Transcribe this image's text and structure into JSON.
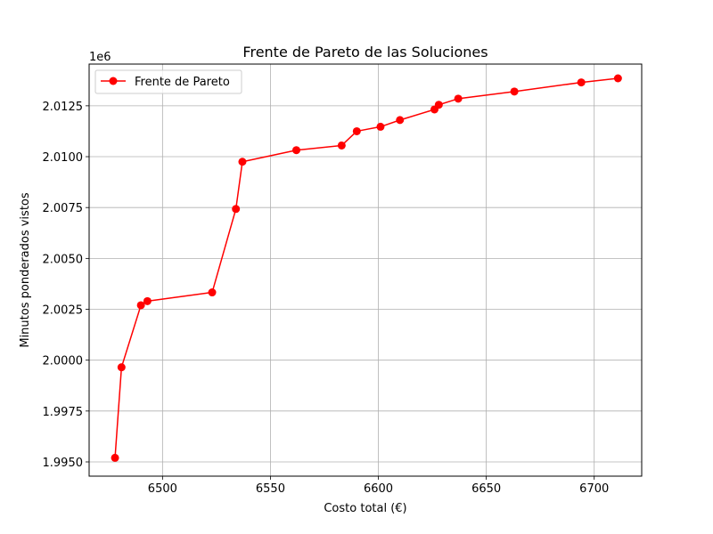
{
  "chart_data": {
    "type": "line",
    "title": "Frente de Pareto de las Soluciones",
    "xlabel": "Costo total (€)",
    "ylabel": "Minutos ponderados vistos",
    "y_offset_label": "1e6",
    "xlim": [
      6466,
      6722
    ],
    "ylim": [
      1.9943,
      2.01455
    ],
    "x_ticks": [
      6500,
      6550,
      6600,
      6650,
      6700
    ],
    "x_tick_labels": [
      "6500",
      "6550",
      "6600",
      "6650",
      "6700"
    ],
    "y_ticks": [
      1.995,
      1.9975,
      2.0,
      2.0025,
      2.005,
      2.0075,
      2.01,
      2.0125
    ],
    "y_tick_labels": [
      "1.9950",
      "1.9975",
      "2.0000",
      "2.0025",
      "2.0050",
      "2.0075",
      "2.0100",
      "2.0125"
    ],
    "grid": true,
    "legend_position": "upper-left",
    "series": [
      {
        "name": "Frente de Pareto",
        "color": "#ff0000",
        "marker": "circle",
        "x": [
          6478,
          6481,
          6490,
          6493,
          6523,
          6534,
          6537,
          6562,
          6583,
          6590,
          6601,
          6610,
          6626,
          6628,
          6637,
          6663,
          6694,
          6711
        ],
        "y": [
          1.9952,
          1.99965,
          2.0027,
          2.0029,
          2.00333,
          2.00743,
          2.00975,
          2.01032,
          2.01055,
          2.01125,
          2.01147,
          2.0118,
          2.01232,
          2.01255,
          2.01285,
          2.0132,
          2.01365,
          2.01385
        ]
      }
    ]
  }
}
